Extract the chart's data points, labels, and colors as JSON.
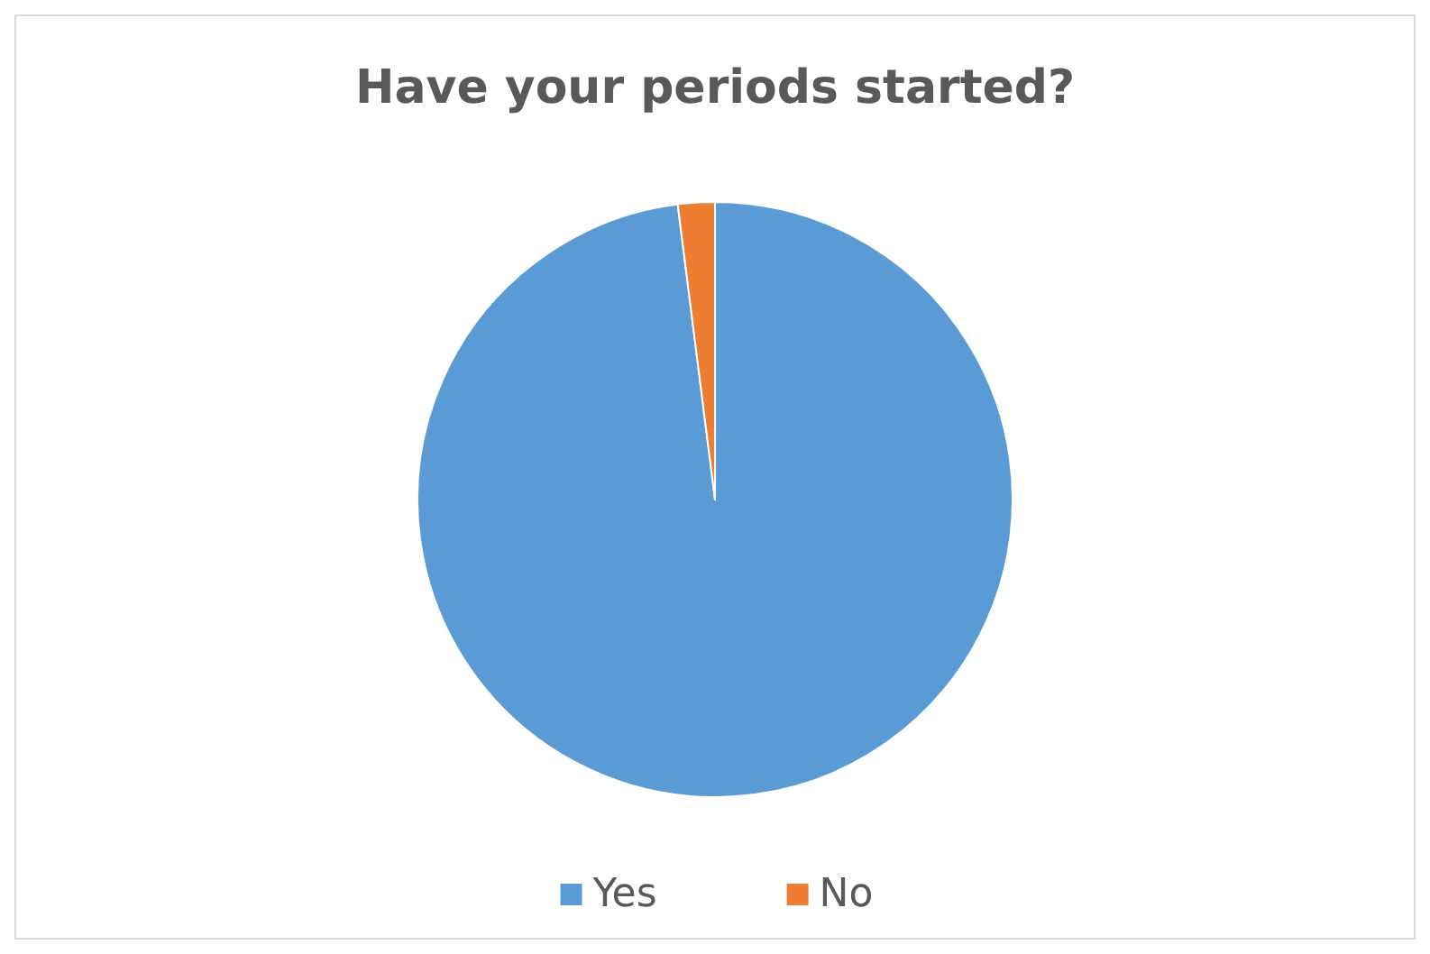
{
  "chart_data": {
    "type": "pie",
    "title": "Have your periods started?",
    "categories": [
      "Yes",
      "No"
    ],
    "values": [
      98,
      2
    ],
    "colors": [
      "#5b9bd5",
      "#ed7d31"
    ],
    "legend": "bottom"
  }
}
